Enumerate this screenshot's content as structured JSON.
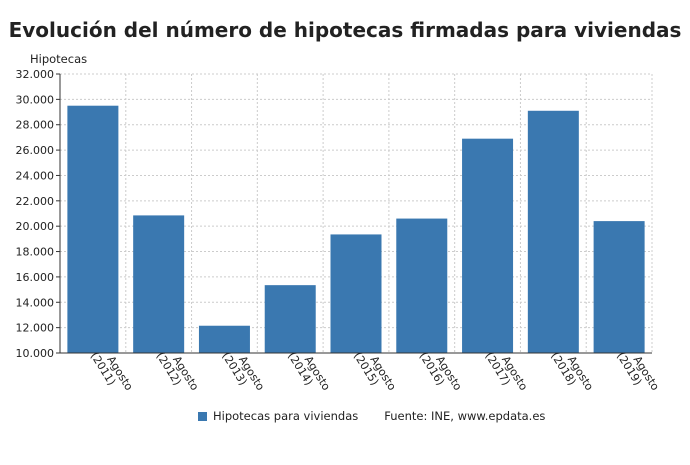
{
  "chart_data": {
    "type": "bar",
    "title": "Evolución del número de hipotecas firmadas para viviendas",
    "ylabel": "Hipotecas",
    "xlabel": "",
    "categories": [
      "Agosto (2011)",
      "Agosto (2012)",
      "Agosto (2013)",
      "Agosto (2014)",
      "Agosto (2015)",
      "Agosto (2016)",
      "Agosto (2017)",
      "Agosto (2018)",
      "Agosto (2019)"
    ],
    "category_lines": [
      [
        "Agosto",
        "(2011)"
      ],
      [
        "Agosto",
        "(2012)"
      ],
      [
        "Agosto",
        "(2013)"
      ],
      [
        "Agosto",
        "(2014)"
      ],
      [
        "Agosto",
        "(2015)"
      ],
      [
        "Agosto",
        "(2016)"
      ],
      [
        "Agosto",
        "(2017)"
      ],
      [
        "Agosto",
        "(2018)"
      ],
      [
        "Agosto",
        "(2019)"
      ]
    ],
    "series": [
      {
        "name": "Hipotecas para viviendas",
        "values": [
          29500,
          20850,
          12150,
          15350,
          19350,
          20600,
          26900,
          29100,
          20400
        ]
      }
    ],
    "ylim": [
      10000,
      32000
    ],
    "yticks": [
      10000,
      12000,
      14000,
      16000,
      18000,
      20000,
      22000,
      24000,
      26000,
      28000,
      30000,
      32000
    ],
    "ytick_labels": [
      "10.000",
      "12.000",
      "14.000",
      "16.000",
      "18.000",
      "20.000",
      "22.000",
      "24.000",
      "26.000",
      "28.000",
      "30.000",
      "32.000"
    ],
    "grid": true,
    "legend_position": "bottom",
    "source": "Fuente: INE, www.epdata.es",
    "colors": {
      "bar": "#3a78b0",
      "grid": "#cccccc",
      "axis": "#333333"
    }
  }
}
